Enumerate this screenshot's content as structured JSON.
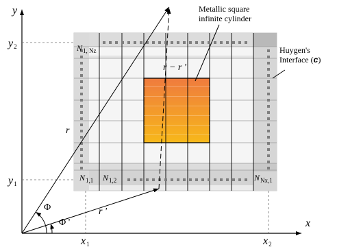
{
  "axes": {
    "x_axis_label": "x",
    "y_axis_label": "y",
    "x1": {
      "main": "x",
      "sub": "1"
    },
    "x2": {
      "main": "x",
      "sub": "2"
    },
    "y1": {
      "main": "y",
      "sub": "1"
    },
    "y2": {
      "main": "y",
      "sub": "2"
    }
  },
  "vectors": {
    "r": "r",
    "r_prime": "r '",
    "r_minus_r_prime": "r − r '",
    "phi": "Φ",
    "phi_prime": "Φ '"
  },
  "nodes": {
    "n_1_nz": {
      "main": "N",
      "sub": "1, Nz"
    },
    "n_1_1": {
      "main": "N",
      "sub": "1,1"
    },
    "n_1_2": {
      "main": "N",
      "sub": "1,2"
    },
    "n_nx_1": {
      "main": "N",
      "sub": "Nx,1"
    }
  },
  "annotations": {
    "metallic_line1": "Metallic square",
    "metallic_line2": "infinite cylinder",
    "huygens_line1": "Huygen's",
    "huygens_line2_prefix": "Interface (",
    "huygens_line2_symbol": "c",
    "huygens_line2_suffix": ")"
  },
  "colors": {
    "grid_fill": "#d9d9d9",
    "grid_band_light": "#e6e6e6",
    "interior_fill": "#f3f3f3",
    "cylinder_top": "#f07f3c",
    "cylinder_bottom": "#f6b21c",
    "dotted": "#808080",
    "line": "#000000"
  }
}
